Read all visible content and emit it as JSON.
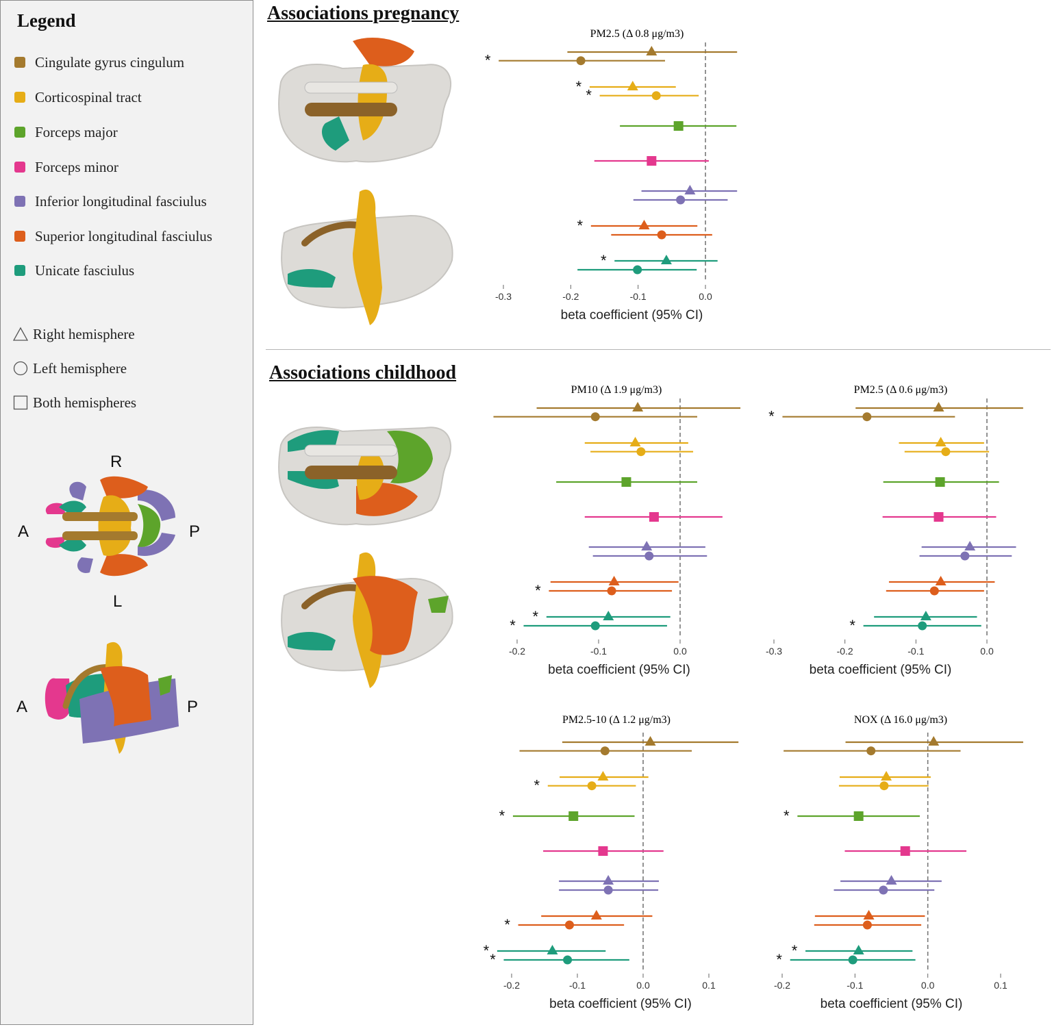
{
  "legend": {
    "title": "Legend",
    "tracts": [
      {
        "label": "Cingulate gyrus cingulum",
        "color": "#a47a2e"
      },
      {
        "label": "Corticospinal tract",
        "color": "#e6ad17"
      },
      {
        "label": "Forceps major",
        "color": "#5da42b"
      },
      {
        "label": "Forceps minor",
        "color": "#e4388e"
      },
      {
        "label": "Inferior longitudinal fasciulus",
        "color": "#7e72b4"
      },
      {
        "label": "Superior longitudinal fasciulus",
        "color": "#dd5e1c"
      },
      {
        "label": "Unicate fasciulus",
        "color": "#1e9c7c"
      }
    ],
    "shapes": [
      {
        "label": "Right hemisphere",
        "icon": "triangle-icon"
      },
      {
        "label": "Left hemisphere",
        "icon": "circle-icon"
      },
      {
        "label": "Both hemispheres",
        "icon": "square-icon"
      }
    ],
    "orientation": {
      "top": "R",
      "bottom": "L",
      "left_top": "A",
      "right_top": "P",
      "left_bottom": "A",
      "right_bottom": "P"
    }
  },
  "sections": {
    "pregnancy": "Associations pregnancy",
    "childhood": "Associations childhood"
  },
  "chart_data": [
    {
      "type": "forest",
      "section": "pregnancy",
      "title_main": "PM",
      "title_sub": "2.5",
      "title_rest": " (Δ 0.8 μg/m3)",
      "xlabel": "beta coefficient (95% CI)",
      "xlim": [
        -0.3,
        0.0
      ],
      "xticks": [
        "-0.3",
        "-0.2",
        "-0.1",
        "0.0"
      ],
      "rows": [
        {
          "tract": 0,
          "shape": "triangle",
          "est": -0.08,
          "lo": -0.205,
          "hi": 0.047,
          "sig": false
        },
        {
          "tract": 0,
          "shape": "circle",
          "est": -0.185,
          "lo": -0.307,
          "hi": -0.06,
          "sig": true
        },
        {
          "tract": 1,
          "shape": "triangle",
          "est": -0.108,
          "lo": -0.172,
          "hi": -0.044,
          "sig": true
        },
        {
          "tract": 1,
          "shape": "circle",
          "est": -0.073,
          "lo": -0.157,
          "hi": -0.01,
          "sig": true
        },
        {
          "tract": 2,
          "shape": "square",
          "est": -0.04,
          "lo": -0.127,
          "hi": 0.046,
          "sig": false
        },
        {
          "tract": 3,
          "shape": "square",
          "est": -0.08,
          "lo": -0.165,
          "hi": 0.005,
          "sig": false
        },
        {
          "tract": 4,
          "shape": "triangle",
          "est": -0.023,
          "lo": -0.095,
          "hi": 0.047,
          "sig": false
        },
        {
          "tract": 4,
          "shape": "circle",
          "est": -0.037,
          "lo": -0.107,
          "hi": 0.033,
          "sig": false
        },
        {
          "tract": 5,
          "shape": "triangle",
          "est": -0.091,
          "lo": -0.17,
          "hi": -0.012,
          "sig": true
        },
        {
          "tract": 5,
          "shape": "circle",
          "est": -0.065,
          "lo": -0.14,
          "hi": 0.01,
          "sig": false
        },
        {
          "tract": 6,
          "shape": "triangle",
          "est": -0.058,
          "lo": -0.135,
          "hi": 0.018,
          "sig": true
        },
        {
          "tract": 6,
          "shape": "circle",
          "est": -0.101,
          "lo": -0.19,
          "hi": -0.013,
          "sig": false
        }
      ]
    },
    {
      "type": "forest",
      "section": "childhood",
      "title_main": "PM",
      "title_sub": "10",
      "title_rest": " (Δ 1.9 μg/m3)",
      "xlabel": "beta coefficient (95% CI)",
      "xlim": [
        -0.2,
        0.0
      ],
      "xticks": [
        "-0.2",
        "-0.1",
        "0.0"
      ],
      "rows": [
        {
          "tract": 0,
          "shape": "triangle",
          "est": -0.052,
          "lo": -0.176,
          "hi": 0.074,
          "sig": false
        },
        {
          "tract": 0,
          "shape": "circle",
          "est": -0.104,
          "lo": -0.229,
          "hi": 0.021,
          "sig": false
        },
        {
          "tract": 1,
          "shape": "triangle",
          "est": -0.055,
          "lo": -0.117,
          "hi": 0.01,
          "sig": false
        },
        {
          "tract": 1,
          "shape": "circle",
          "est": -0.048,
          "lo": -0.11,
          "hi": 0.016,
          "sig": false
        },
        {
          "tract": 2,
          "shape": "square",
          "est": -0.066,
          "lo": -0.152,
          "hi": 0.021,
          "sig": false
        },
        {
          "tract": 3,
          "shape": "square",
          "est": -0.032,
          "lo": -0.117,
          "hi": 0.052,
          "sig": false
        },
        {
          "tract": 4,
          "shape": "triangle",
          "est": -0.041,
          "lo": -0.112,
          "hi": 0.031,
          "sig": false
        },
        {
          "tract": 4,
          "shape": "circle",
          "est": -0.038,
          "lo": -0.107,
          "hi": 0.033,
          "sig": false
        },
        {
          "tract": 5,
          "shape": "triangle",
          "est": -0.081,
          "lo": -0.159,
          "hi": -0.002,
          "sig": false
        },
        {
          "tract": 5,
          "shape": "circle",
          "est": -0.084,
          "lo": -0.161,
          "hi": -0.01,
          "sig": true
        },
        {
          "tract": 6,
          "shape": "triangle",
          "est": -0.088,
          "lo": -0.164,
          "hi": -0.012,
          "sig": true
        },
        {
          "tract": 6,
          "shape": "circle",
          "est": -0.104,
          "lo": -0.192,
          "hi": -0.016,
          "sig": true
        }
      ]
    },
    {
      "type": "forest",
      "section": "childhood",
      "title_main": "PM",
      "title_sub": "2.5",
      "title_rest": " (Δ 0.6 μg/m3)",
      "xlabel": "beta coefficient (95% CI)",
      "xlim": [
        -0.3,
        0.0
      ],
      "xticks": [
        "-0.3",
        "-0.2",
        "-0.1",
        "0.0"
      ],
      "rows": [
        {
          "tract": 0,
          "shape": "triangle",
          "est": -0.068,
          "lo": -0.185,
          "hi": 0.051,
          "sig": false
        },
        {
          "tract": 0,
          "shape": "circle",
          "est": -0.169,
          "lo": -0.288,
          "hi": -0.045,
          "sig": true
        },
        {
          "tract": 1,
          "shape": "triangle",
          "est": -0.065,
          "lo": -0.124,
          "hi": -0.004,
          "sig": false
        },
        {
          "tract": 1,
          "shape": "circle",
          "est": -0.058,
          "lo": -0.116,
          "hi": 0.003,
          "sig": false
        },
        {
          "tract": 2,
          "shape": "square",
          "est": -0.066,
          "lo": -0.146,
          "hi": 0.017,
          "sig": false
        },
        {
          "tract": 3,
          "shape": "square",
          "est": -0.068,
          "lo": -0.147,
          "hi": 0.013,
          "sig": false
        },
        {
          "tract": 4,
          "shape": "triangle",
          "est": -0.024,
          "lo": -0.092,
          "hi": 0.041,
          "sig": false
        },
        {
          "tract": 4,
          "shape": "circle",
          "est": -0.031,
          "lo": -0.095,
          "hi": 0.035,
          "sig": false
        },
        {
          "tract": 5,
          "shape": "triangle",
          "est": -0.065,
          "lo": -0.138,
          "hi": 0.011,
          "sig": false
        },
        {
          "tract": 5,
          "shape": "circle",
          "est": -0.074,
          "lo": -0.142,
          "hi": -0.004,
          "sig": false
        },
        {
          "tract": 6,
          "shape": "triangle",
          "est": -0.086,
          "lo": -0.159,
          "hi": -0.014,
          "sig": false
        },
        {
          "tract": 6,
          "shape": "circle",
          "est": -0.091,
          "lo": -0.174,
          "hi": -0.008,
          "sig": true
        }
      ]
    },
    {
      "type": "forest",
      "section": "childhood",
      "title_main": "PM",
      "title_sub": "2.5-10",
      "title_rest": " (Δ 1.2 μg/m3)",
      "xlabel": "beta coefficient (95% CI)",
      "xlim": [
        -0.2,
        0.1
      ],
      "xticks": [
        "-0.2",
        "-0.1",
        "0.0",
        "0.1"
      ],
      "rows": [
        {
          "tract": 0,
          "shape": "triangle",
          "est": 0.011,
          "lo": -0.123,
          "hi": 0.145,
          "sig": false
        },
        {
          "tract": 0,
          "shape": "circle",
          "est": -0.058,
          "lo": -0.188,
          "hi": 0.074,
          "sig": false
        },
        {
          "tract": 1,
          "shape": "triangle",
          "est": -0.061,
          "lo": -0.127,
          "hi": 0.008,
          "sig": false
        },
        {
          "tract": 1,
          "shape": "circle",
          "est": -0.078,
          "lo": -0.145,
          "hi": -0.011,
          "sig": true
        },
        {
          "tract": 2,
          "shape": "square",
          "est": -0.106,
          "lo": -0.198,
          "hi": -0.013,
          "sig": true
        },
        {
          "tract": 3,
          "shape": "square",
          "est": -0.061,
          "lo": -0.152,
          "hi": 0.031,
          "sig": false
        },
        {
          "tract": 4,
          "shape": "triangle",
          "est": -0.053,
          "lo": -0.128,
          "hi": 0.024,
          "sig": false
        },
        {
          "tract": 4,
          "shape": "circle",
          "est": -0.053,
          "lo": -0.128,
          "hi": 0.023,
          "sig": false
        },
        {
          "tract": 5,
          "shape": "triangle",
          "est": -0.071,
          "lo": -0.155,
          "hi": 0.014,
          "sig": false
        },
        {
          "tract": 5,
          "shape": "circle",
          "est": -0.112,
          "lo": -0.19,
          "hi": -0.029,
          "sig": true
        },
        {
          "tract": 6,
          "shape": "triangle",
          "est": -0.138,
          "lo": -0.222,
          "hi": -0.057,
          "sig": true
        },
        {
          "tract": 6,
          "shape": "circle",
          "est": -0.115,
          "lo": -0.212,
          "hi": -0.021,
          "sig": true
        }
      ]
    },
    {
      "type": "forest",
      "section": "childhood",
      "title_main": "NO",
      "title_sub": "X",
      "title_rest": " (Δ 16.0 μg/m3)",
      "xlabel": "beta coefficient (95% CI)",
      "xlim": [
        -0.2,
        0.1
      ],
      "xticks": [
        "-0.2",
        "-0.1",
        "0.0",
        "0.1"
      ],
      "rows": [
        {
          "tract": 0,
          "shape": "triangle",
          "est": 0.008,
          "lo": -0.113,
          "hi": 0.131,
          "sig": false
        },
        {
          "tract": 0,
          "shape": "circle",
          "est": -0.078,
          "lo": -0.198,
          "hi": 0.045,
          "sig": false
        },
        {
          "tract": 1,
          "shape": "triangle",
          "est": -0.057,
          "lo": -0.121,
          "hi": 0.004,
          "sig": false
        },
        {
          "tract": 1,
          "shape": "circle",
          "est": -0.06,
          "lo": -0.122,
          "hi": 0.001,
          "sig": false
        },
        {
          "tract": 2,
          "shape": "square",
          "est": -0.095,
          "lo": -0.179,
          "hi": -0.011,
          "sig": true
        },
        {
          "tract": 3,
          "shape": "square",
          "est": -0.031,
          "lo": -0.114,
          "hi": 0.053,
          "sig": false
        },
        {
          "tract": 4,
          "shape": "triangle",
          "est": -0.05,
          "lo": -0.12,
          "hi": 0.019,
          "sig": false
        },
        {
          "tract": 4,
          "shape": "circle",
          "est": -0.061,
          "lo": -0.129,
          "hi": 0.009,
          "sig": false
        },
        {
          "tract": 5,
          "shape": "triangle",
          "est": -0.081,
          "lo": -0.155,
          "hi": -0.004,
          "sig": false
        },
        {
          "tract": 5,
          "shape": "circle",
          "est": -0.083,
          "lo": -0.156,
          "hi": -0.009,
          "sig": false
        },
        {
          "tract": 6,
          "shape": "triangle",
          "est": -0.095,
          "lo": -0.168,
          "hi": -0.021,
          "sig": true
        },
        {
          "tract": 6,
          "shape": "circle",
          "est": -0.103,
          "lo": -0.189,
          "hi": -0.017,
          "sig": true
        }
      ]
    }
  ]
}
